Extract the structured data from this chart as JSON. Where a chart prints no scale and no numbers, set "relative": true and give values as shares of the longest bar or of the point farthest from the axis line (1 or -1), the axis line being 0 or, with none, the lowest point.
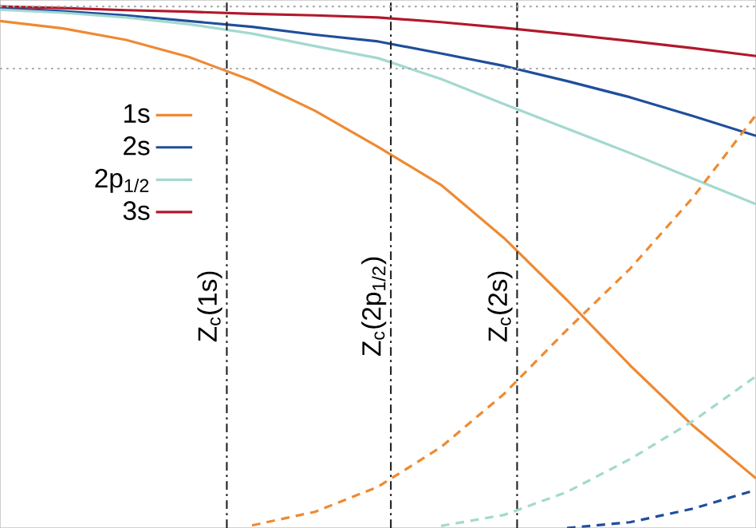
{
  "chart_data": {
    "type": "line",
    "relative": true,
    "legend": "left",
    "categories": [
      null,
      null,
      null,
      null,
      null,
      null,
      null,
      null,
      null,
      null,
      null,
      null,
      null
    ],
    "series": [
      {
        "name": "1s",
        "color": "#ee8a33",
        "line_style": "solid",
        "values": [
          0.972,
          0.958,
          0.936,
          0.903,
          0.858,
          0.8,
          0.731,
          0.658,
          0.556,
          0.437,
          0.312,
          0.196,
          0.095
        ]
      },
      {
        "name": "2s",
        "color": "#1f4e9c",
        "line_style": "solid",
        "values": [
          0.997,
          0.991,
          0.983,
          0.972,
          0.961,
          0.946,
          0.933,
          0.91,
          0.886,
          0.857,
          0.826,
          0.79,
          0.752
        ]
      },
      {
        "name": "2p$_{1/2}$",
        "color": "#a3d9cf",
        "line_style": "solid",
        "values": [
          0.994,
          0.988,
          0.979,
          0.966,
          0.948,
          0.924,
          0.901,
          0.861,
          0.813,
          0.766,
          0.719,
          0.67,
          0.621
        ]
      },
      {
        "name": "3s",
        "color": "#b2182b",
        "line_style": "solid",
        "values": [
          1.0,
          0.997,
          0.993,
          0.99,
          0.986,
          0.983,
          0.979,
          0.97,
          0.959,
          0.947,
          0.934,
          0.92,
          0.905
        ]
      },
      {
        "color": "#ee8a33",
        "line_style": "dashed",
        "values": [
          null,
          null,
          null,
          null,
          0.005,
          0.031,
          0.079,
          0.155,
          0.257,
          0.38,
          0.497,
          0.634,
          0.792
        ]
      },
      {
        "color": "#a3d9cf",
        "line_style": "dashed",
        "values": [
          null,
          null,
          null,
          null,
          null,
          null,
          null,
          0.004,
          0.025,
          0.069,
          0.132,
          0.205,
          0.291
        ]
      },
      {
        "color": "#1f4e9c",
        "line_style": "dashed",
        "values": [
          null,
          null,
          null,
          null,
          null,
          null,
          null,
          null,
          null,
          0,
          0.011,
          0.037,
          0.073
        ]
      }
    ],
    "annotations": [
      "Z$_{c}$(1s)",
      "Z$_{c}$(2p$_{1/2}$)",
      "Z$_{c}$(2s)"
    ],
    "ref_lines": [
      {
        "axis": "y",
        "value": 1.0,
        "line_style": "dotted",
        "color": "#aaaaaa"
      },
      {
        "axis": "y",
        "value": 0.881,
        "line_style": "dotted",
        "color": "#aaaaaa"
      }
    ]
  }
}
